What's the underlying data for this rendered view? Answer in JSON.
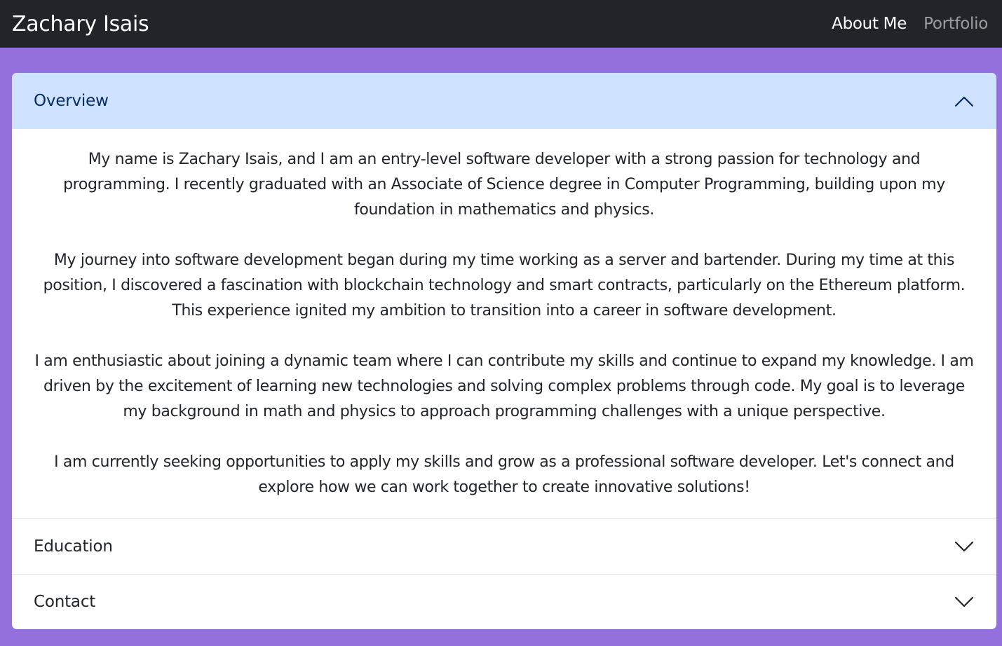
{
  "navbar": {
    "brand": "Zachary Isais",
    "links": [
      {
        "label": "About Me",
        "active": true
      },
      {
        "label": "Portfolio",
        "active": false
      }
    ]
  },
  "accordion": {
    "items": [
      {
        "title": "Overview",
        "expanded": true,
        "icon": "chevron-up-icon",
        "paragraphs": [
          "My name is Zachary Isais, and I am an entry-level software developer with a strong passion for technology and programming. I recently graduated with an Associate of Science degree in Computer Programming, building upon my foundation in mathematics and physics.",
          "My journey into software development began during my time working as a server and bartender. During my time at this position, I discovered a fascination with blockchain technology and smart contracts, particularly on the Ethereum platform. This experience ignited my ambition to transition into a career in software development.",
          "I am enthusiastic about joining a dynamic team where I can contribute my skills and continue to expand my knowledge. I am driven by the excitement of learning new technologies and solving complex problems through code. My goal is to leverage my background in math and physics to approach programming challenges with a unique perspective.",
          "I am currently seeking opportunities to apply my skills and grow as a professional software developer. Let's connect and explore how we can work together to create innovative solutions!"
        ]
      },
      {
        "title": "Education",
        "expanded": false,
        "icon": "chevron-down-icon"
      },
      {
        "title": "Contact",
        "expanded": false,
        "icon": "chevron-down-icon"
      }
    ]
  },
  "colors": {
    "page_background": "#9370db",
    "navbar_background": "#212529",
    "active_header_background": "#cfe2ff",
    "active_header_text": "#052c65"
  }
}
